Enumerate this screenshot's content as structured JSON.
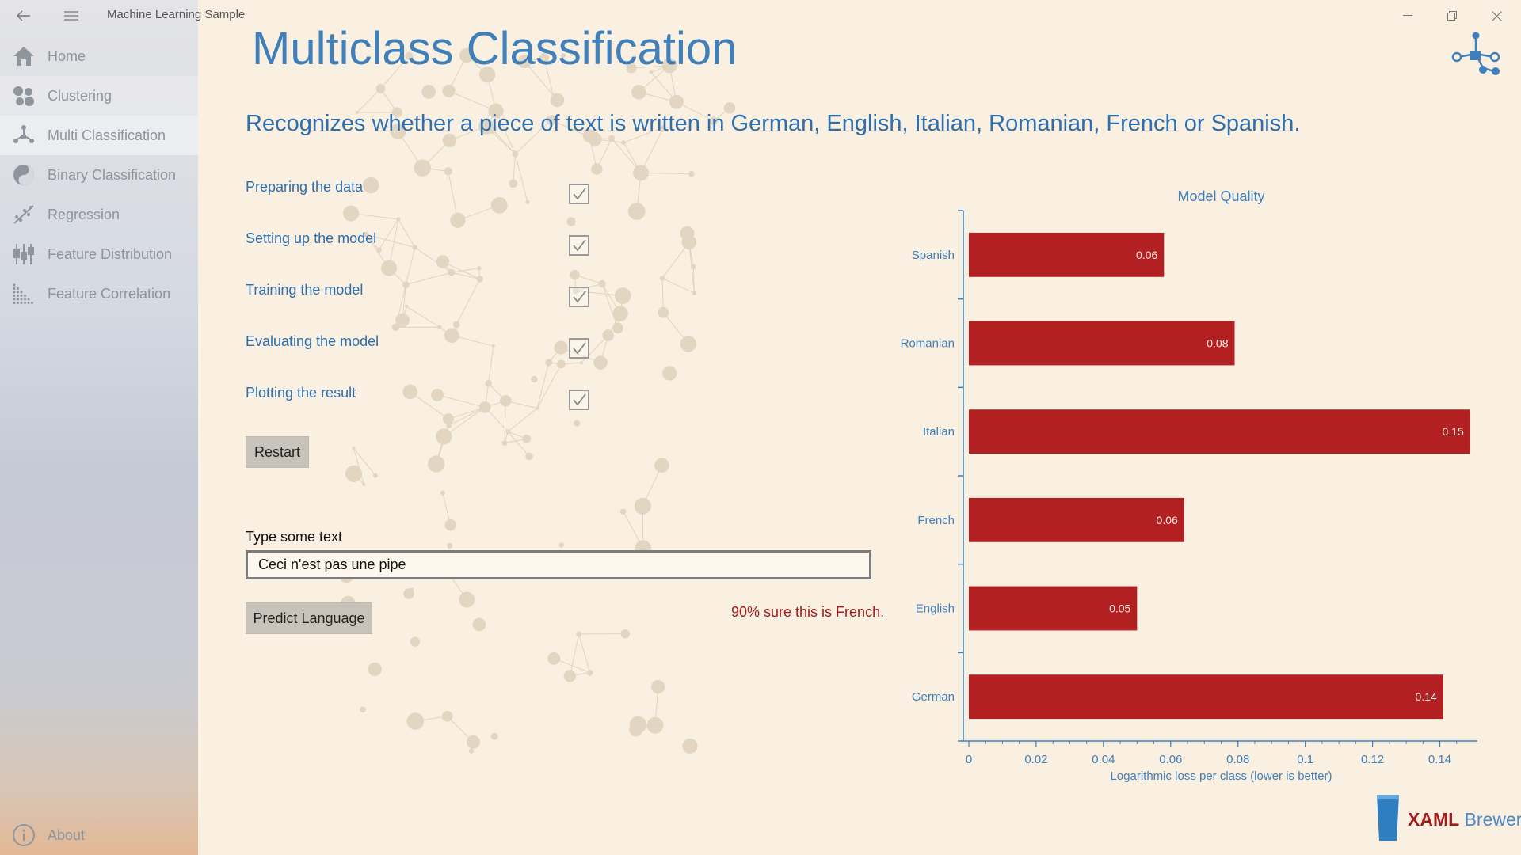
{
  "window": {
    "title": "Machine Learning Sample",
    "back_icon": "back-arrow-icon",
    "menu_icon": "hamburger-menu-icon",
    "minimize_icon": "minimize-icon",
    "restore_icon": "restore-icon",
    "close_icon": "close-icon"
  },
  "sidebar": {
    "items": [
      {
        "label": "Home",
        "icon": "home-icon"
      },
      {
        "label": "Clustering",
        "icon": "clustering-icon"
      },
      {
        "label": "Multi Classification",
        "icon": "multi-classification-icon"
      },
      {
        "label": "Binary Classification",
        "icon": "binary-classification-icon"
      },
      {
        "label": "Regression",
        "icon": "regression-icon"
      },
      {
        "label": "Feature Distribution",
        "icon": "feature-distribution-icon"
      },
      {
        "label": "Feature Correlation",
        "icon": "feature-correlation-icon"
      }
    ],
    "selected": "Multi Classification",
    "about_label": "About"
  },
  "page": {
    "title": "Multiclass Classification",
    "subtitle": "Recognizes whether a piece of text is written in German, English, Italian, Romanian, French or Spanish.",
    "steps": [
      {
        "label": "Preparing the data",
        "checked": true
      },
      {
        "label": "Setting up the model",
        "checked": true
      },
      {
        "label": "Training the model",
        "checked": true
      },
      {
        "label": "Evaluating the model",
        "checked": true
      },
      {
        "label": "Plotting the result",
        "checked": true
      }
    ],
    "restart_label": "Restart",
    "input_label": "Type some text",
    "input_value": "Ceci n'est pas une pipe",
    "predict_label": "Predict Language",
    "prediction_text": "90% sure this is French."
  },
  "branding": {
    "logo_icon": "ml-network-icon",
    "brewer_icon": "beer-glass-icon",
    "brewer_bold": "XAML",
    "brewer_rest": "Brewer"
  },
  "colors": {
    "accent": "#3f7fba",
    "bar": "#b22022",
    "prediction": "#a31b1b",
    "background": "#faf0e1"
  },
  "chart_data": {
    "type": "bar",
    "orientation": "horizontal",
    "title": "Model Quality",
    "xlabel": "Logarithmic loss per class (lower is better)",
    "ylabel": "",
    "categories": [
      "Spanish",
      "Romanian",
      "Italian",
      "French",
      "English",
      "German"
    ],
    "values": [
      0.058,
      0.079,
      0.149,
      0.064,
      0.05,
      0.141
    ],
    "data_labels": [
      "0.06",
      "0.08",
      "0.15",
      "0.06",
      "0.05",
      "0.14"
    ],
    "xlim": [
      0,
      0.15
    ],
    "xticks": [
      "0",
      "0.02",
      "0.04",
      "0.06",
      "0.08",
      "0.1",
      "0.12",
      "0.14"
    ],
    "grid": false,
    "legend": "none"
  }
}
